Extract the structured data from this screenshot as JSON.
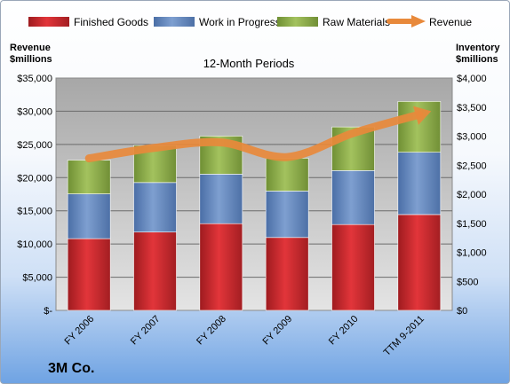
{
  "chart_data": {
    "type": "bar",
    "stacked": true,
    "subtitle": "12-Month Periods",
    "company": "3M Co.",
    "categories": [
      "FY 2006",
      "FY 2007",
      "FY 2008",
      "FY 2009",
      "FY 2010",
      "TTM 9-2011"
    ],
    "series": [
      {
        "name": "Finished Goods",
        "color": "#c0282c",
        "axis": "right",
        "values": [
          1235,
          1348,
          1493,
          1255,
          1478,
          1650
        ]
      },
      {
        "name": "Work in Progress",
        "color": "#5b7fb6",
        "axis": "right",
        "values": [
          771,
          853,
          852,
          799,
          929,
          1072
        ]
      },
      {
        "name": "Raw Materials",
        "color": "#86a845",
        "axis": "right",
        "values": [
          581,
          640,
          656,
          567,
          751,
          875
        ]
      }
    ],
    "line_series": {
      "name": "Revenue",
      "color": "#e8893b",
      "axis": "left",
      "values": [
        22900,
        24500,
        25300,
        23100,
        26700,
        29500
      ]
    },
    "left_axis": {
      "title_line1": "Revenue",
      "title_line2": "$millions",
      "ylim": [
        0,
        35000
      ],
      "ticks": [
        "$35,000",
        "$30,000",
        "$25,000",
        "$20,000",
        "$15,000",
        "$10,000",
        "$5,000",
        "$-"
      ]
    },
    "right_axis": {
      "title_line1": "Inventory",
      "title_line2": "$millions",
      "ylim": [
        0,
        4000
      ],
      "ticks": [
        "$4,000",
        "$3,500",
        "$3,000",
        "$2,500",
        "$2,000",
        "$1,500",
        "$1,000",
        "$500",
        "$0"
      ]
    },
    "legend_position": "top",
    "grid": true
  }
}
